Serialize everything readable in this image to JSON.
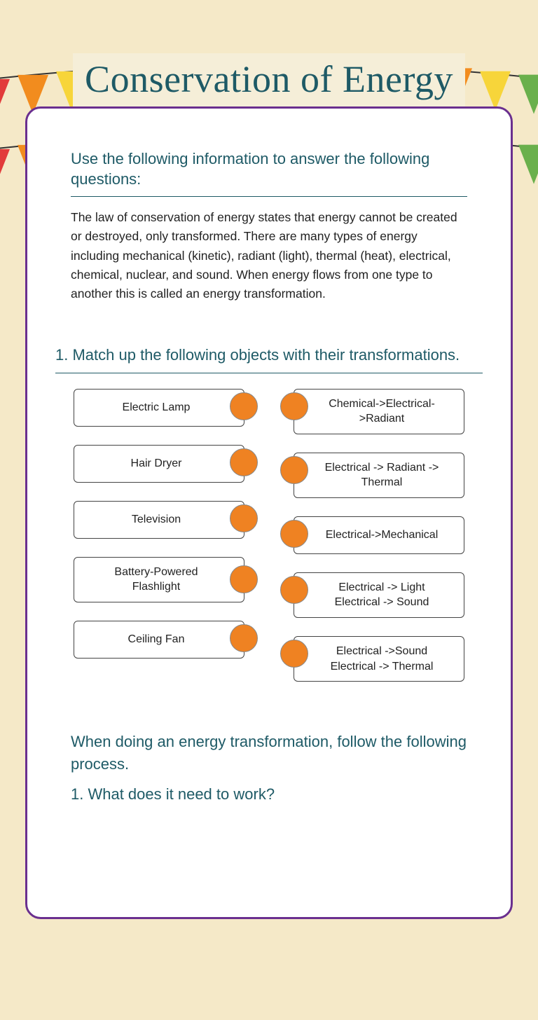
{
  "title": "Conservation of Energy",
  "instructions_heading": "Use the following information to answer the following questions:",
  "body_text": "The law of conservation of energy states that energy cannot be created or destroyed, only transformed.  There are many types of energy including mechanical (kinetic), radiant (light), thermal (heat), electrical,  chemical, nuclear, and sound.  When energy flows from one type to another this is called an energy transformation.",
  "q1_heading": "1.  Match up the following objects with their transformations.",
  "match_left": [
    "Electric Lamp",
    "Hair Dryer",
    "Television",
    "Battery-Powered Flashlight",
    "Ceiling Fan"
  ],
  "match_right": [
    "Chemical->Electrical->Radiant",
    "Electrical -> Radiant -> Thermal",
    "Electrical->Mechanical",
    "Electrical -> Light Electrical -> Sound",
    "Electrical ->Sound Electrical -> Thermal"
  ],
  "process_heading": "When doing an energy transformation, follow the following process.",
  "process_step1": "1.  What does it need to work?",
  "colors": {
    "title_text": "#1e5a66",
    "card_border": "#6a2f8f",
    "page_bg": "#f5e9c8",
    "title_bg": "#f5eed8",
    "dot_fill": "#ef8222",
    "dot_border": "#888",
    "box_border": "#444",
    "body_text": "#222"
  },
  "bunting_colors": [
    "#e23b3b",
    "#f28c1e",
    "#f7d53a",
    "#6ab04c",
    "#2e86c1",
    "#a569bd",
    "#ec7063",
    "#17a589",
    "#f5b041",
    "#c0392b",
    "#8e44ad"
  ]
}
